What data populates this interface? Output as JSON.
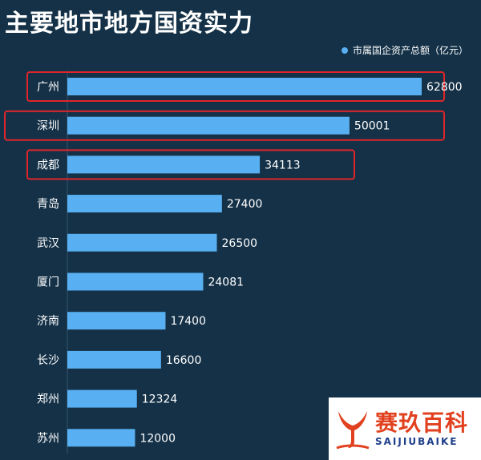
{
  "chart_data": {
    "type": "bar",
    "orientation": "horizontal",
    "title": "主要地市地方国资实力",
    "legend": "市属国企资产总额（亿元）",
    "legend_position": "top-right",
    "categories": [
      "广州",
      "深圳",
      "成都",
      "青岛",
      "武汉",
      "厦门",
      "济南",
      "长沙",
      "郑州",
      "苏州"
    ],
    "values": [
      62800,
      50001,
      34113,
      27400,
      26500,
      24081,
      17400,
      16600,
      12324,
      12000
    ],
    "highlighted": [
      "广州",
      "深圳",
      "成都"
    ],
    "colors": {
      "background": "#143147",
      "bar": "#58b0f2",
      "highlight_box": "#e0262a",
      "axis": "#35546b",
      "label": "#ffffff"
    }
  },
  "watermark": {
    "brand_cn": "赛玖百科",
    "brand_en": "SAIJIUBAIKE"
  }
}
